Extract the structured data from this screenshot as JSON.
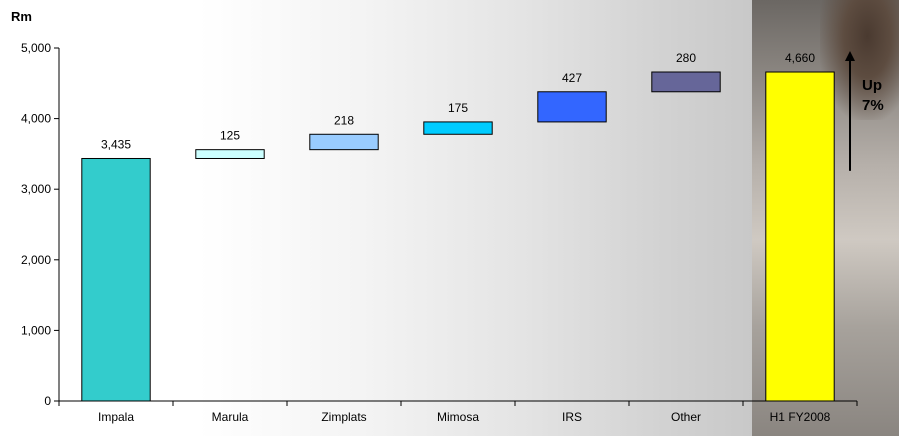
{
  "chart_data": {
    "type": "waterfall",
    "unit_label": "Rm",
    "categories": [
      "Impala",
      "Marula",
      "Zimplats",
      "Mimosa",
      "IRS",
      "Other",
      "H1 FY2008"
    ],
    "values": [
      3435,
      125,
      218,
      175,
      427,
      280,
      4660
    ],
    "value_labels": [
      "3,435",
      "125",
      "218",
      "175",
      "427",
      "280",
      "4,660"
    ],
    "kinds": [
      "total",
      "increment",
      "increment",
      "increment",
      "increment",
      "increment",
      "total"
    ],
    "colors": [
      "#33CCCC",
      "#CCFFFF",
      "#99CCFF",
      "#00CCFF",
      "#3366FF",
      "#666699",
      "#FFFF00"
    ],
    "ylim": [
      0,
      5000
    ],
    "yticks": [
      0,
      1000,
      2000,
      3000,
      4000,
      5000
    ],
    "ytick_labels": [
      "0",
      "1,000",
      "2,000",
      "3,000",
      "4,000",
      "5,000"
    ],
    "annotation": {
      "line1": "Up",
      "line2": "7%"
    }
  }
}
